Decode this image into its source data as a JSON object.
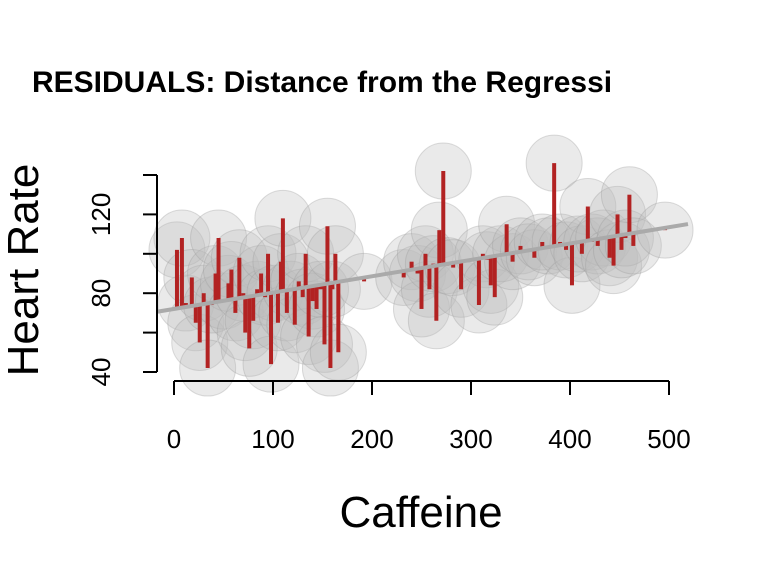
{
  "chart_data": {
    "type": "scatter",
    "title": "RESIDUALS: Distance from the Regressi",
    "xlabel": "Caffeine",
    "ylabel": "Heart Rate",
    "xlim": [
      0,
      500
    ],
    "ylim": [
      40,
      140
    ],
    "x_ticks": [
      0,
      100,
      200,
      300,
      400,
      500
    ],
    "y_ticks": [
      40,
      80,
      120
    ],
    "regression": {
      "intercept": 72,
      "slope": 0.083
    },
    "colors": {
      "residual": "#b22222",
      "regression": "#aaaaaa",
      "point": "#bdbdbd"
    },
    "points": [
      [
        3,
        102
      ],
      [
        8,
        108
      ],
      [
        12,
        75
      ],
      [
        18,
        88
      ],
      [
        22,
        65
      ],
      [
        26,
        55
      ],
      [
        30,
        80
      ],
      [
        34,
        42
      ],
      [
        38,
        74
      ],
      [
        42,
        90
      ],
      [
        45,
        108
      ],
      [
        50,
        76
      ],
      [
        55,
        85
      ],
      [
        58,
        92
      ],
      [
        62,
        70
      ],
      [
        66,
        98
      ],
      [
        70,
        80
      ],
      [
        72,
        60
      ],
      [
        76,
        52
      ],
      [
        80,
        66
      ],
      [
        84,
        82
      ],
      [
        88,
        90
      ],
      [
        92,
        78
      ],
      [
        95,
        100
      ],
      [
        98,
        44
      ],
      [
        102,
        80
      ],
      [
        105,
        65
      ],
      [
        108,
        96
      ],
      [
        110,
        118
      ],
      [
        114,
        70
      ],
      [
        118,
        82
      ],
      [
        122,
        64
      ],
      [
        126,
        86
      ],
      [
        130,
        78
      ],
      [
        133,
        100
      ],
      [
        136,
        58
      ],
      [
        140,
        76
      ],
      [
        144,
        72
      ],
      [
        148,
        82
      ],
      [
        152,
        54
      ],
      [
        155,
        114
      ],
      [
        158,
        42
      ],
      [
        160,
        82
      ],
      [
        163,
        100
      ],
      [
        166,
        50
      ],
      [
        192,
        86
      ],
      [
        232,
        88
      ],
      [
        240,
        96
      ],
      [
        246,
        90
      ],
      [
        250,
        72
      ],
      [
        254,
        100
      ],
      [
        258,
        82
      ],
      [
        262,
        95
      ],
      [
        265,
        66
      ],
      [
        268,
        112
      ],
      [
        272,
        142
      ],
      [
        276,
        94
      ],
      [
        282,
        93
      ],
      [
        290,
        82
      ],
      [
        308,
        74
      ],
      [
        312,
        100
      ],
      [
        316,
        97
      ],
      [
        320,
        84
      ],
      [
        324,
        78
      ],
      [
        330,
        100
      ],
      [
        336,
        115
      ],
      [
        342,
        96
      ],
      [
        350,
        104
      ],
      [
        358,
        101
      ],
      [
        364,
        98
      ],
      [
        372,
        106
      ],
      [
        378,
        104
      ],
      [
        384,
        146
      ],
      [
        390,
        106
      ],
      [
        396,
        102
      ],
      [
        402,
        84
      ],
      [
        408,
        105
      ],
      [
        412,
        100
      ],
      [
        418,
        124
      ],
      [
        422,
        106
      ],
      [
        428,
        104
      ],
      [
        434,
        108
      ],
      [
        440,
        98
      ],
      [
        444,
        94
      ],
      [
        448,
        120
      ],
      [
        452,
        102
      ],
      [
        456,
        108
      ],
      [
        460,
        130
      ],
      [
        464,
        104
      ],
      [
        496,
        112
      ]
    ]
  }
}
